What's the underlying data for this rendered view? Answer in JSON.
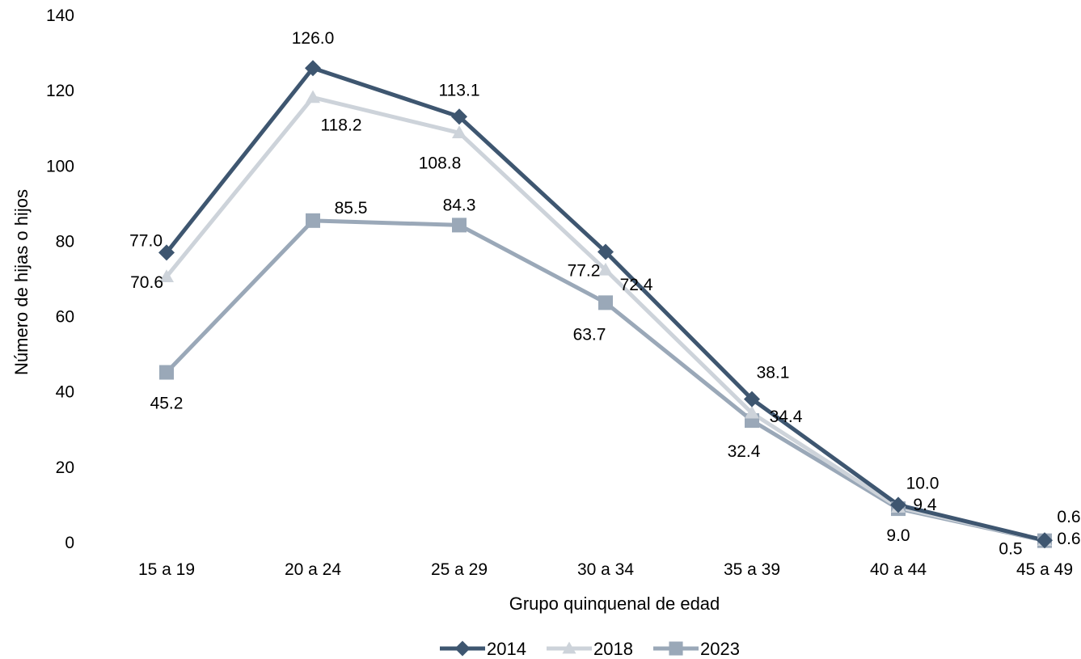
{
  "chart_data": {
    "type": "line",
    "title": "",
    "xlabel": "Grupo quinquenal de edad",
    "ylabel": "Número de hijas o hijos",
    "ylim": [
      0,
      140
    ],
    "yticks": [
      0,
      20,
      40,
      60,
      80,
      100,
      120,
      140
    ],
    "grid": false,
    "legend_position": "bottom",
    "categories": [
      "15 a 19",
      "20 a 24",
      "25 a 29",
      "30 a 34",
      "35 a 39",
      "40 a 44",
      "45 a 49"
    ],
    "series": [
      {
        "name": "2014",
        "marker": "diamond",
        "color": "#3e5670",
        "values": [
          77.0,
          126.0,
          113.1,
          77.2,
          38.1,
          10.0,
          0.6
        ],
        "labels": [
          "77.0",
          "126.0",
          "113.1",
          "77.2",
          "38.1",
          "10.0",
          "0.6"
        ]
      },
      {
        "name": "2018",
        "marker": "triangle",
        "color": "#cdd3da",
        "values": [
          70.6,
          118.2,
          108.8,
          72.4,
          34.4,
          9.4,
          0.6
        ],
        "labels": [
          "70.6",
          "118.2",
          "108.8",
          "72.4",
          "34.4",
          "9.4",
          "0.6"
        ]
      },
      {
        "name": "2023",
        "marker": "square",
        "color": "#9aa8b8",
        "values": [
          45.2,
          85.5,
          84.3,
          63.7,
          32.4,
          9.0,
          0.5
        ],
        "labels": [
          "45.2",
          "85.5",
          "84.3",
          "63.7",
          "32.4",
          "9.0",
          "0.5"
        ]
      }
    ]
  }
}
